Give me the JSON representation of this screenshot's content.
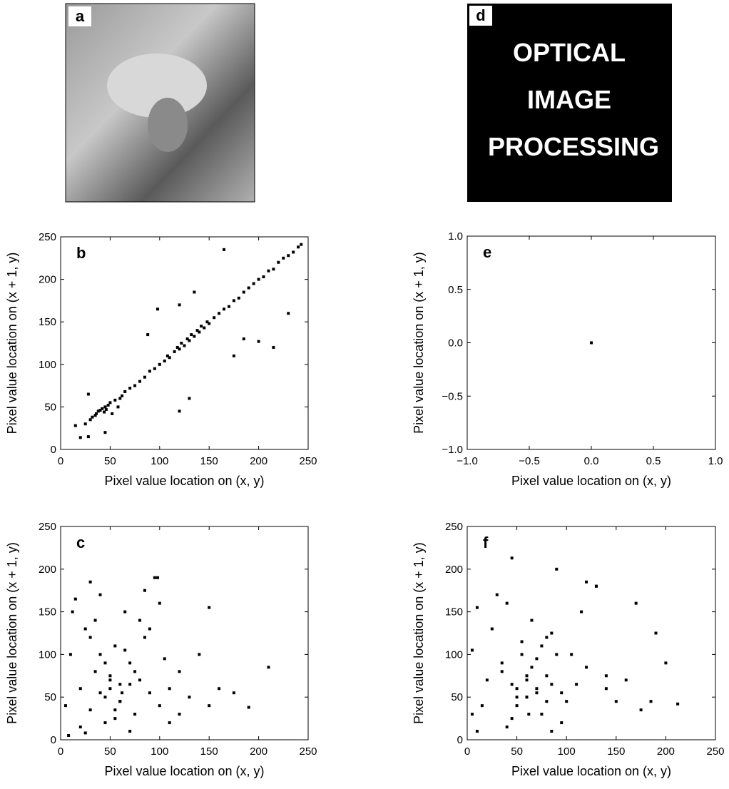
{
  "images": [
    {
      "label": "a"
    },
    {
      "label": "d",
      "text": [
        "OPTICAL",
        "IMAGE",
        "PROCESSING"
      ]
    }
  ],
  "chart_data": [
    {
      "type": "scatter",
      "label": "b",
      "xlabel": "Pixel value location on (x, y)",
      "ylabel": "Pixel value location on (x + 1, y)",
      "xlim": [
        0,
        250
      ],
      "ylim": [
        0,
        250
      ],
      "xticks": [
        0,
        50,
        100,
        150,
        200,
        250
      ],
      "yticks": [
        0,
        50,
        100,
        150,
        200,
        250
      ],
      "color": "#000000",
      "x": [
        15,
        20,
        25,
        28,
        30,
        32,
        35,
        36,
        38,
        40,
        42,
        44,
        45,
        46,
        48,
        50,
        52,
        55,
        58,
        60,
        62,
        65,
        70,
        75,
        80,
        85,
        90,
        95,
        100,
        105,
        108,
        110,
        115,
        118,
        120,
        122,
        125,
        128,
        130,
        132,
        135,
        138,
        140,
        142,
        145,
        148,
        150,
        155,
        160,
        165,
        170,
        175,
        180,
        185,
        190,
        195,
        200,
        205,
        210,
        215,
        220,
        225,
        230,
        235,
        240,
        243,
        88,
        98,
        120,
        130,
        165,
        175,
        200,
        215,
        230,
        28,
        45,
        120,
        135,
        185
      ],
      "values": [
        28,
        14,
        30,
        65,
        35,
        38,
        40,
        42,
        45,
        46,
        48,
        44,
        50,
        47,
        52,
        55,
        42,
        58,
        50,
        60,
        63,
        68,
        72,
        75,
        80,
        85,
        92,
        95,
        100,
        104,
        110,
        108,
        115,
        120,
        118,
        125,
        122,
        130,
        128,
        135,
        133,
        140,
        138,
        145,
        143,
        150,
        148,
        155,
        160,
        165,
        168,
        175,
        178,
        185,
        190,
        195,
        200,
        203,
        210,
        212,
        220,
        225,
        228,
        232,
        238,
        241,
        135,
        165,
        170,
        60,
        235,
        110,
        127,
        120,
        160,
        15,
        20,
        45,
        185,
        130
      ]
    },
    {
      "type": "scatter",
      "label": "e",
      "xlabel": "Pixel value location on (x, y)",
      "ylabel": "Pixel value location on (x + 1, y)",
      "xlim": [
        -1,
        1
      ],
      "ylim": [
        -1,
        1
      ],
      "xticks": [
        {
          "value": -1,
          "label": "−1.0"
        },
        {
          "value": -0.5,
          "label": "−0.5"
        },
        {
          "value": 0,
          "label": "0.0"
        },
        {
          "value": 0.5,
          "label": "0.5"
        },
        {
          "value": 1,
          "label": "1.0"
        }
      ],
      "yticks": [
        {
          "value": -1,
          "label": "−1.0"
        },
        {
          "value": -0.5,
          "label": "−0.5"
        },
        {
          "value": 0,
          "label": "0.0"
        },
        {
          "value": 0.5,
          "label": "0.5"
        },
        {
          "value": 1,
          "label": "1.0"
        }
      ],
      "color": "#000000",
      "x": [
        0
      ],
      "values": [
        0
      ]
    },
    {
      "type": "scatter",
      "label": "c",
      "xlabel": "Pixel value location on (x, y)",
      "ylabel": "Pixel value location on (x + 1, y)",
      "xlim": [
        0,
        250
      ],
      "ylim": [
        0,
        250
      ],
      "xticks": [
        0,
        50,
        100,
        150,
        200,
        250
      ],
      "yticks": [
        0,
        50,
        100,
        150,
        200,
        250
      ],
      "color": "#000000",
      "x": [
        5,
        10,
        15,
        20,
        25,
        30,
        35,
        40,
        45,
        50,
        55,
        60,
        65,
        70,
        75,
        80,
        85,
        90,
        95,
        100,
        105,
        110,
        120,
        130,
        140,
        150,
        160,
        175,
        190,
        210,
        30,
        40,
        50,
        60,
        70,
        20,
        45,
        55,
        65,
        35,
        100,
        98,
        80,
        120,
        8,
        12,
        25,
        70,
        85,
        150,
        45,
        50,
        55,
        60,
        40,
        30,
        75,
        90,
        110,
        62
      ],
      "values": [
        40,
        100,
        165,
        60,
        130,
        185,
        80,
        170,
        20,
        60,
        110,
        45,
        150,
        90,
        30,
        70,
        120,
        55,
        190,
        40,
        95,
        60,
        80,
        50,
        100,
        40,
        60,
        55,
        38,
        85,
        35,
        55,
        70,
        45,
        65,
        15,
        90,
        25,
        105,
        140,
        160,
        190,
        140,
        30,
        5,
        150,
        8,
        10,
        175,
        155,
        50,
        75,
        35,
        65,
        100,
        120,
        80,
        130,
        20,
        55
      ]
    },
    {
      "type": "scatter",
      "label": "f",
      "xlabel": "Pixel value location on (x, y)",
      "ylabel": "Pixel value location on (x + 1, y)",
      "xlim": [
        0,
        250
      ],
      "ylim": [
        0,
        250
      ],
      "xticks": [
        0,
        50,
        100,
        150,
        200,
        250
      ],
      "yticks": [
        0,
        50,
        100,
        150,
        200,
        250
      ],
      "color": "#000000",
      "x": [
        5,
        10,
        15,
        20,
        25,
        30,
        35,
        40,
        45,
        50,
        55,
        60,
        65,
        70,
        75,
        80,
        85,
        90,
        95,
        100,
        105,
        110,
        120,
        130,
        140,
        150,
        160,
        175,
        200,
        212,
        45,
        50,
        60,
        70,
        80,
        40,
        55,
        65,
        75,
        85,
        85,
        120,
        130,
        190,
        5,
        10,
        170,
        185,
        95,
        60,
        50,
        60,
        70,
        35,
        45,
        80,
        90,
        115,
        140,
        62
      ],
      "values": [
        105,
        155,
        40,
        70,
        130,
        170,
        90,
        160,
        25,
        60,
        115,
        50,
        140,
        95,
        30,
        75,
        125,
        200,
        55,
        45,
        100,
        65,
        85,
        180,
        60,
        45,
        70,
        35,
        90,
        42,
        213,
        50,
        75,
        60,
        45,
        15,
        100,
        85,
        110,
        65,
        10,
        185,
        180,
        125,
        30,
        10,
        160,
        45,
        20,
        50,
        40,
        70,
        55,
        80,
        65,
        120,
        100,
        150,
        75,
        30
      ]
    }
  ]
}
